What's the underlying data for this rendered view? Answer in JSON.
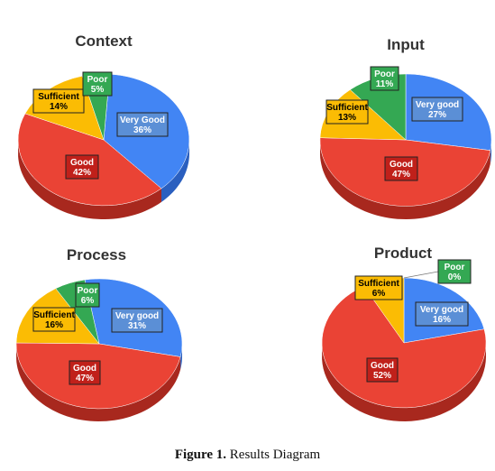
{
  "chart_data": [
    {
      "type": "pie",
      "title": "Context",
      "categories": [
        "Very Good",
        "Good",
        "Sufficient",
        "Poor"
      ],
      "values": [
        36,
        42,
        14,
        5
      ],
      "value_labels": [
        "36%",
        "42%",
        "14%",
        "5%"
      ]
    },
    {
      "type": "pie",
      "title": "Input",
      "categories": [
        "Very good",
        "Good",
        "Sufficient",
        "Poor"
      ],
      "values": [
        27,
        47,
        13,
        11
      ],
      "value_labels": [
        "27%",
        "47%",
        "13%",
        "11%"
      ]
    },
    {
      "type": "pie",
      "title": "Process",
      "categories": [
        "Very good",
        "Good",
        "Sufficient",
        "Poor"
      ],
      "values": [
        31,
        47,
        16,
        6
      ],
      "value_labels": [
        "31%",
        "47%",
        "16%",
        "6%"
      ]
    },
    {
      "type": "pie",
      "title": "Product",
      "categories": [
        "Very good",
        "Good",
        "Sufficient",
        "Poor"
      ],
      "values": [
        16,
        52,
        6,
        0
      ],
      "value_labels": [
        "16%",
        "52%",
        "6%",
        "0%"
      ]
    }
  ],
  "colors": {
    "very_good": "#4285f4",
    "very_good_dark": "#2a5fbf",
    "good": "#ea4335",
    "good_dark": "#a8281e",
    "sufficient": "#fbbc04",
    "sufficient_dark": "#b88800",
    "poor": "#34a853",
    "poor_dark": "#1f7a3a",
    "label_very_good_bg": "#5b8fd6",
    "label_good_bg": "#c0201a",
    "label_sufficient_bg": "#fbbc04",
    "label_poor_bg": "#34a853"
  },
  "caption": {
    "figure_label": "Figure 1.",
    "text": " Results Diagram"
  }
}
